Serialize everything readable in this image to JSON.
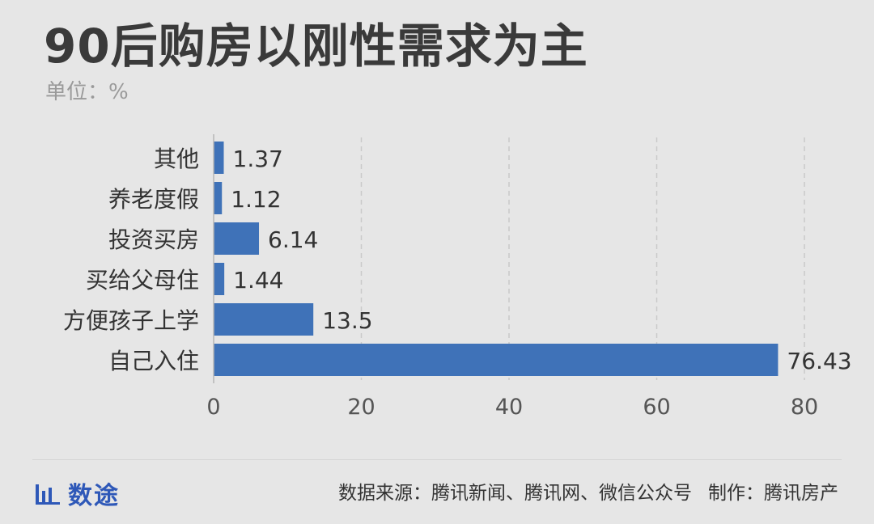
{
  "header": {
    "title": "90后购房以刚性需求为主",
    "unit": "单位：%"
  },
  "chart_data": {
    "type": "bar",
    "orientation": "horizontal",
    "categories": [
      "其他",
      "养老度假",
      "投资买房",
      "买给父母住",
      "方便孩子上学",
      "自己入住"
    ],
    "values": [
      1.37,
      1.12,
      6.14,
      1.44,
      13.5,
      76.43
    ],
    "value_labels": [
      "1.37",
      "1.12",
      "6.14",
      "1.44",
      "13.5",
      "76.43"
    ],
    "xlim": [
      0,
      80
    ],
    "xticks": [
      0,
      20,
      40,
      60,
      80
    ],
    "bar_color": "#3f72b8",
    "grid": "vertical dashed",
    "title": "90后购房以刚性需求为主",
    "xlabel": "",
    "ylabel": ""
  },
  "footer": {
    "brand": "数途",
    "brand_icon": "bar-chart-icon",
    "brand_color": "#2e58b8",
    "source": "数据来源：腾讯新闻、腾讯网、微信公众号",
    "credit": "制作：腾讯房产"
  }
}
